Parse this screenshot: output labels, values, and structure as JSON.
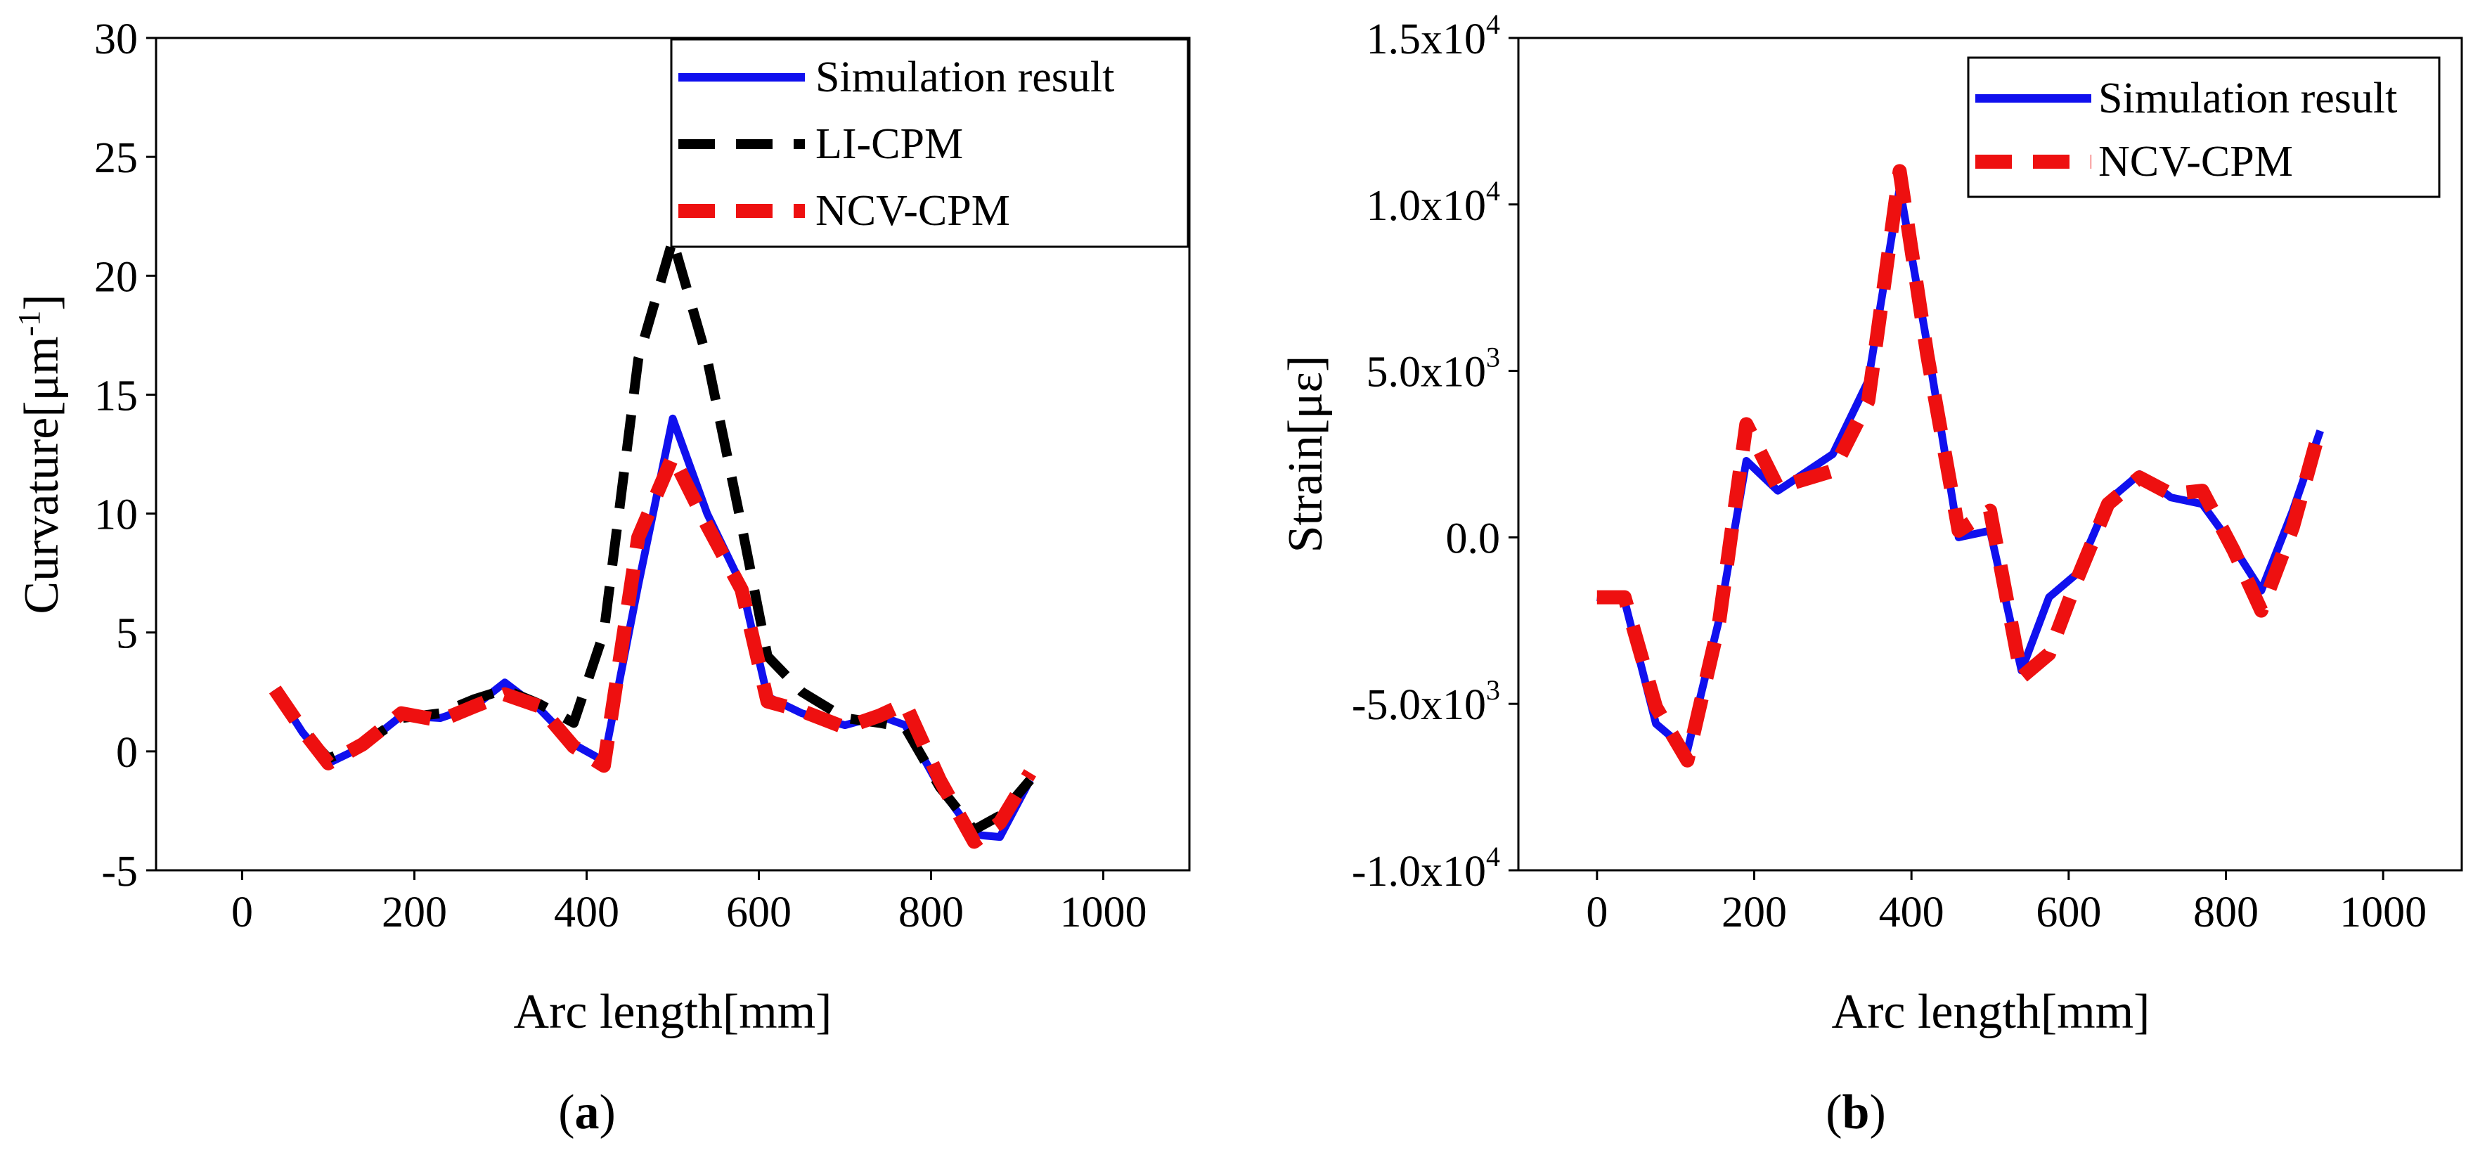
{
  "figure": {
    "panels": [
      {
        "label_open": "(",
        "label_letter": "a",
        "label_close": ")"
      },
      {
        "label_open": "(",
        "label_letter": "b",
        "label_close": ")"
      }
    ]
  },
  "chart_data": [
    {
      "type": "line",
      "title": "",
      "xlabel": "Arc length[mm]",
      "ylabel": "Curvature[μm",
      "ylabel_sup": "-1",
      "ylabel_close": "]",
      "xlim": [
        -100,
        1100
      ],
      "ylim": [
        -5,
        30
      ],
      "xticks": [
        0,
        200,
        400,
        600,
        800,
        1000
      ],
      "xtick_labels": [
        "0",
        "200",
        "400",
        "600",
        "800",
        "1000"
      ],
      "yticks": [
        -5,
        0,
        5,
        10,
        15,
        20,
        25,
        30
      ],
      "ytick_labels": [
        "-5",
        "0",
        "5",
        "10",
        "15",
        "20",
        "25",
        "30"
      ],
      "grid": false,
      "legend_position": "top-right",
      "series": [
        {
          "name": "Simulation result",
          "color": "#1010ee",
          "style": "solid",
          "x": [
            38,
            70,
            100,
            140,
            185,
            230,
            270,
            305,
            345,
            385,
            420,
            460,
            500,
            540,
            580,
            610,
            650,
            700,
            740,
            770,
            810,
            850,
            880,
            915
          ],
          "y": [
            2.6,
            0.8,
            -0.5,
            0.2,
            1.5,
            1.4,
            1.9,
            2.9,
            1.8,
            0.3,
            -0.4,
            7.0,
            14.0,
            10.0,
            7.0,
            2.3,
            1.6,
            1.1,
            1.5,
            1.1,
            -1.5,
            -3.5,
            -3.6,
            -1.2
          ]
        },
        {
          "name": "LI-CPM",
          "color": "#000000",
          "style": "dashed",
          "x": [
            38,
            70,
            100,
            140,
            185,
            230,
            270,
            305,
            345,
            385,
            420,
            460,
            500,
            540,
            580,
            610,
            650,
            700,
            740,
            770,
            810,
            850,
            880,
            915
          ],
          "y": [
            2.6,
            0.9,
            -0.3,
            0.3,
            1.4,
            1.6,
            2.2,
            2.6,
            2.0,
            1.2,
            5.0,
            16.5,
            21.5,
            16.5,
            9.5,
            4.0,
            2.5,
            1.4,
            1.2,
            1.0,
            -1.5,
            -3.3,
            -2.7,
            -1.2
          ]
        },
        {
          "name": "NCV-CPM",
          "color": "#ee1010",
          "style": "dashed",
          "x": [
            38,
            70,
            100,
            140,
            185,
            230,
            270,
            305,
            345,
            385,
            420,
            460,
            500,
            540,
            580,
            610,
            650,
            700,
            740,
            770,
            810,
            850,
            880,
            915
          ],
          "y": [
            2.6,
            0.9,
            -0.5,
            0.3,
            1.6,
            1.3,
            1.9,
            2.4,
            1.9,
            0.2,
            -0.6,
            9.0,
            12.4,
            9.5,
            6.8,
            2.1,
            1.7,
            1.0,
            1.5,
            2.0,
            -1.2,
            -3.8,
            -3.0,
            -0.9
          ]
        }
      ]
    },
    {
      "type": "line",
      "title": "",
      "xlabel": "Arc length[mm]",
      "ylabel": "Strain[με]",
      "xlim": [
        -100,
        1100
      ],
      "ylim": [
        -10000,
        15000
      ],
      "xticks": [
        0,
        200,
        400,
        600,
        800,
        1000
      ],
      "xtick_labels": [
        "0",
        "200",
        "400",
        "600",
        "800",
        "1000"
      ],
      "yticks": [
        -10000,
        -5000,
        0,
        5000,
        10000,
        15000
      ],
      "ytick_labels": [
        {
          "base": "-1.0x10",
          "exp": "4"
        },
        {
          "base": "-5.0x10",
          "exp": "3"
        },
        {
          "base": "0.0",
          "exp": ""
        },
        {
          "base": "5.0x10",
          "exp": "3"
        },
        {
          "base": "1.0x10",
          "exp": "4"
        },
        {
          "base": "1.5x10",
          "exp": "4"
        }
      ],
      "grid": false,
      "legend_position": "top-right",
      "series": [
        {
          "name": "Simulation result",
          "color": "#1010ee",
          "style": "solid",
          "x": [
            0,
            35,
            75,
            115,
            155,
            190,
            230,
            300,
            345,
            385,
            420,
            460,
            500,
            540,
            575,
            610,
            650,
            690,
            730,
            770,
            810,
            845,
            885,
            920
          ],
          "y": [
            -1800,
            -1900,
            -5600,
            -6400,
            -2500,
            2300,
            1400,
            2500,
            4700,
            10500,
            5800,
            0,
            200,
            -4000,
            -1800,
            -1100,
            1100,
            1900,
            1200,
            1000,
            -300,
            -1600,
            800,
            3200
          ]
        },
        {
          "name": "NCV-CPM",
          "color": "#ee1010",
          "style": "dashed",
          "x": [
            0,
            35,
            75,
            115,
            155,
            190,
            230,
            300,
            345,
            385,
            420,
            460,
            500,
            540,
            575,
            610,
            650,
            690,
            730,
            770,
            810,
            845,
            885,
            920
          ],
          "y": [
            -1800,
            -1800,
            -5100,
            -6700,
            -2600,
            3400,
            1500,
            2000,
            4100,
            11000,
            5500,
            200,
            800,
            -4200,
            -3500,
            -1300,
            1000,
            1800,
            1300,
            1400,
            -400,
            -2200,
            300,
            3300
          ]
        }
      ]
    }
  ]
}
